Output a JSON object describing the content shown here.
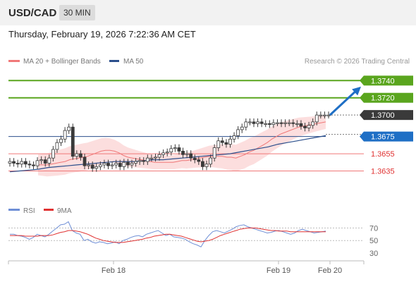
{
  "header": {
    "pair": "USD/CAD",
    "timeframe": "30 MIN"
  },
  "timestamp": "Thursday, February 19, 2026 7:22:36 AM CET",
  "legend": {
    "bollinger": "MA 20 + Bollinger Bands",
    "ma50": "MA 50",
    "credit": "Research © 2026 Trading Central"
  },
  "rsi_legend": {
    "rsi": "RSI",
    "ma9": "9MA"
  },
  "colors": {
    "green": "#5aa51e",
    "navy": "#2b4f8c",
    "red": "#f07878",
    "blue": "#1f6fc5",
    "dark": "#3a3a3a",
    "band": "#fbd3d3",
    "rsi": "#6f8fd6",
    "rsi_ma": "#e03131"
  },
  "chart_data": [
    {
      "type": "candlestick",
      "title": "",
      "x_axis": {
        "tick_labels": [
          "Feb 18",
          "Feb 19",
          "Feb 20"
        ]
      },
      "y_range": [
        1.361,
        1.3755
      ],
      "levels": [
        {
          "value": 1.374,
          "label": "1.3740",
          "type": "resistance"
        },
        {
          "value": 1.372,
          "label": "1.3720",
          "type": "resistance"
        },
        {
          "value": 1.37,
          "label": "1.3700",
          "type": "last"
        },
        {
          "value": 1.3675,
          "label": "1.3675",
          "type": "pivot"
        },
        {
          "value": 1.3655,
          "label": "1.3655",
          "type": "support"
        },
        {
          "value": 1.3635,
          "label": "1.3635",
          "type": "support"
        }
      ],
      "series": [
        {
          "name": "MA 20 + Bollinger Bands"
        },
        {
          "name": "MA 50"
        }
      ],
      "candles_close": [
        1.3646,
        1.3644,
        1.3643,
        1.3646,
        1.3643,
        1.3642,
        1.3641,
        1.3647,
        1.3648,
        1.3644,
        1.365,
        1.366,
        1.3668,
        1.3672,
        1.3682,
        1.3686,
        1.3652,
        1.3655,
        1.3651,
        1.3641,
        1.3642,
        1.3638,
        1.364,
        1.3642,
        1.3644,
        1.3641,
        1.3642,
        1.3644,
        1.364,
        1.3645,
        1.3642,
        1.3644,
        1.3646,
        1.3647,
        1.3646,
        1.365,
        1.365,
        1.3651,
        1.3654,
        1.3656,
        1.3657,
        1.3661,
        1.3662,
        1.3658,
        1.3654,
        1.3655,
        1.365,
        1.3648,
        1.3646,
        1.364,
        1.3643,
        1.365,
        1.3662,
        1.367,
        1.3668,
        1.3666,
        1.3672,
        1.3676,
        1.3683,
        1.3686,
        1.3692,
        1.3692,
        1.369,
        1.3692,
        1.369,
        1.369,
        1.3689,
        1.3691,
        1.3691,
        1.369,
        1.3691,
        1.3691,
        1.369,
        1.369,
        1.3687,
        1.3685,
        1.3688,
        1.3692,
        1.37,
        1.37,
        1.37,
        1.37
      ],
      "ma20": [
        1.3642,
        1.3642,
        1.3642,
        1.3643,
        1.3644,
        1.3645,
        1.3646,
        1.3648,
        1.3649,
        1.365,
        1.3651,
        1.3652,
        1.3654,
        1.3656,
        1.3658,
        1.3659,
        1.3659,
        1.3658,
        1.3656,
        1.3653,
        1.3651,
        1.365,
        1.3649,
        1.3648,
        1.3647,
        1.3646,
        1.3645,
        1.3645,
        1.3645,
        1.3645,
        1.3645,
        1.3646,
        1.3647,
        1.3647,
        1.3648,
        1.3649,
        1.365,
        1.3651,
        1.3652,
        1.3652,
        1.3652,
        1.3652,
        1.3651,
        1.3651,
        1.365,
        1.3652,
        1.3654,
        1.3657,
        1.3659,
        1.3662,
        1.3665,
        1.3668,
        1.3672,
        1.3675,
        1.3678,
        1.368,
        1.3682,
        1.3684,
        1.3686,
        1.3687,
        1.3688,
        1.3689,
        1.369,
        1.3691,
        1.3692
      ],
      "ma50": [
        1.3634,
        1.3635,
        1.3636,
        1.3637,
        1.3639,
        1.364,
        1.3641,
        1.3642,
        1.3643,
        1.3644,
        1.3645,
        1.3646,
        1.3646,
        1.3646,
        1.3647,
        1.3648,
        1.3648,
        1.3649,
        1.365,
        1.3651,
        1.3652,
        1.3653,
        1.3654,
        1.3655,
        1.3657,
        1.3659,
        1.3661,
        1.3663,
        1.3666,
        1.3668,
        1.367,
        1.3672,
        1.3674,
        1.3676
      ]
    },
    {
      "type": "line",
      "title": "",
      "y_ticks": [
        30,
        50,
        70
      ],
      "y_range": [
        20,
        85
      ],
      "series": [
        {
          "name": "RSI",
          "values": [
            60,
            60,
            58,
            57,
            55,
            52,
            55,
            60,
            58,
            56,
            60,
            65,
            70,
            75,
            76,
            80,
            66,
            62,
            60,
            50,
            52,
            48,
            46,
            48,
            47,
            45,
            46,
            48,
            45,
            50,
            52,
            55,
            57,
            58,
            56,
            60,
            62,
            64,
            66,
            62,
            58,
            60,
            56,
            55,
            54,
            52,
            48,
            45,
            43,
            40,
            50,
            58,
            64,
            66,
            64,
            62,
            65,
            68,
            72,
            74,
            75,
            72,
            70,
            68,
            66,
            64,
            62,
            63,
            65,
            66,
            64,
            62,
            60,
            62,
            66,
            68,
            66,
            64,
            62,
            63,
            64,
            65
          ]
        },
        {
          "name": "9MA",
          "values": [
            58,
            58,
            58,
            58,
            57,
            57,
            57,
            57,
            58,
            58,
            58,
            59,
            61,
            63,
            64,
            66,
            66,
            65,
            64,
            62,
            60,
            57,
            54,
            52,
            50,
            49,
            48,
            47,
            47,
            47,
            48,
            49,
            50,
            51,
            52,
            54,
            55,
            57,
            58,
            59,
            60,
            60,
            59,
            58,
            57,
            55,
            53,
            51,
            49,
            48,
            49,
            50,
            52,
            55,
            58,
            60,
            62,
            64,
            66,
            68,
            69,
            70,
            70,
            70,
            69,
            68,
            67,
            66,
            66,
            65,
            65,
            65,
            64,
            64,
            64,
            64,
            64,
            64,
            64,
            64,
            64,
            64
          ]
        }
      ]
    }
  ]
}
